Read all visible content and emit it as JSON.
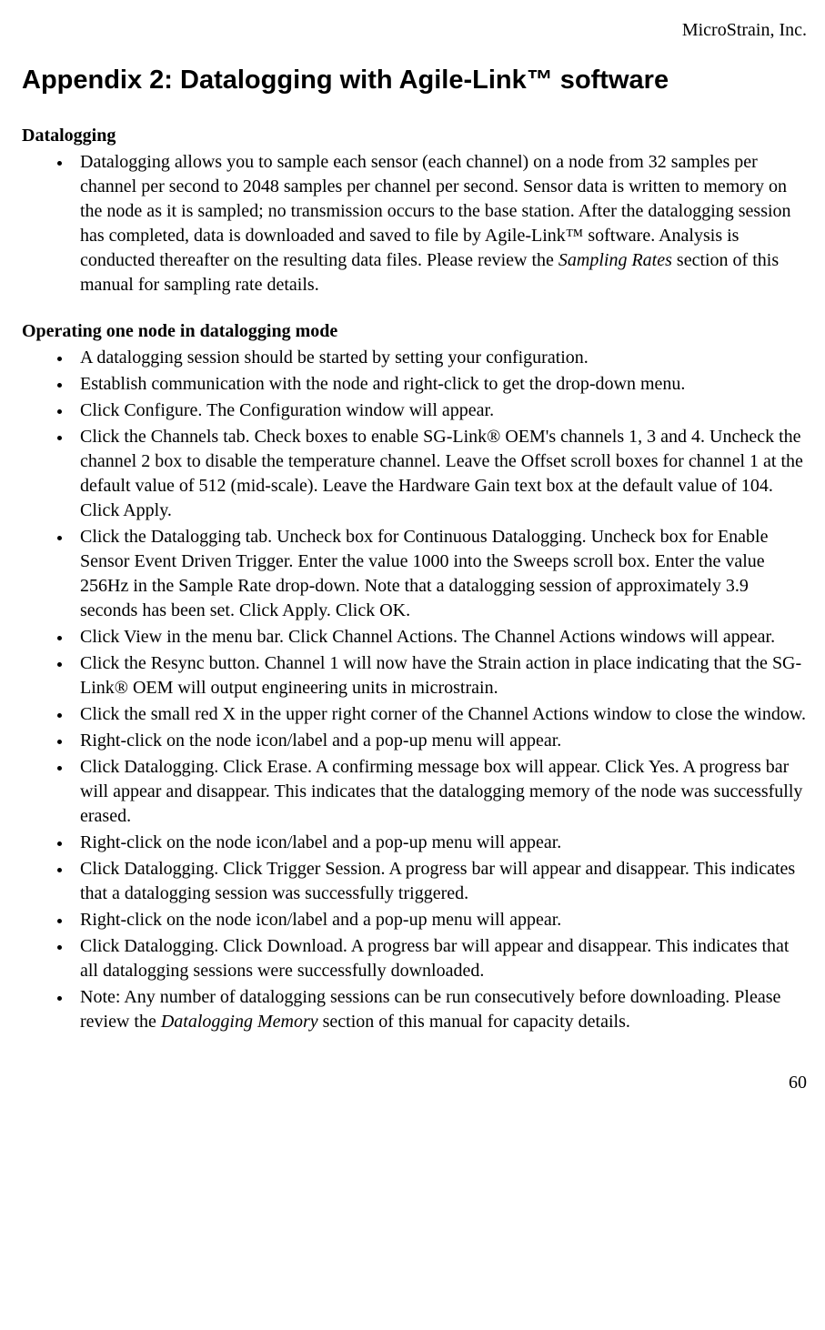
{
  "header": {
    "company": "MicroStrain, Inc."
  },
  "title": "Appendix 2: Datalogging with Agile-Link™ software",
  "section1": {
    "heading": "Datalogging",
    "items": {
      "i0_a": "Datalogging allows you to sample each sensor (each channel) on a node from 32 samples per channel per second to 2048 samples per channel per second. Sensor data is written to memory on the node as it is sampled; no transmission occurs to the base station. After the datalogging session has completed, data is downloaded and saved to file by Agile-Link™ software. Analysis is conducted thereafter on the resulting data files. Please review the ",
      "i0_em": "Sampling Rates",
      "i0_b": " section of this manual for sampling rate details."
    }
  },
  "section2": {
    "heading": "Operating one node in datalogging mode",
    "items": {
      "i0": "A datalogging session should be started by setting your configuration.",
      "i1": "Establish communication with the node and right-click to get the drop-down menu.",
      "i2": "Click Configure.  The Configuration window will appear.",
      "i3": "Click the Channels tab.  Check boxes to enable SG-Link® OEM's channels 1, 3 and 4. Uncheck the channel 2 box to disable the temperature channel.  Leave the Offset scroll boxes for channel 1 at the default value of 512 (mid-scale).  Leave the Hardware Gain text box at the default value of 104. Click Apply.",
      "i4": "Click the Datalogging tab.  Uncheck box for Continuous Datalogging.  Uncheck box for Enable Sensor Event Driven Trigger.  Enter the value 1000 into the Sweeps scroll box.  Enter the value 256Hz in the Sample Rate drop-down.  Note that a datalogging session of approximately 3.9 seconds has been set.  Click Apply.  Click OK.",
      "i5": "Click View in the menu bar.  Click Channel Actions.  The Channel Actions windows will appear.",
      "i6": "Click the Resync button.  Channel 1 will now have the Strain action in place indicating that the SG-Link® OEM will output engineering units in microstrain.",
      "i7": "Click the small red X in the upper right corner of the Channel Actions window to close the window.",
      "i8": "Right-click on the node icon/label and a pop-up menu will appear.",
      "i9": "Click Datalogging.  Click Erase.  A confirming message box will appear.  Click Yes.  A progress bar will appear and disappear.  This indicates that the datalogging memory of the node was successfully erased.",
      "i10": "Right-click on the node icon/label and a pop-up menu will appear.",
      "i11": "Click Datalogging.  Click Trigger Session.  A progress bar will appear and disappear.  This indicates that a datalogging session was successfully triggered.",
      "i12": "Right-click on the node icon/label and a pop-up menu will appear.",
      "i13": "Click Datalogging.  Click Download.  A progress bar will appear and disappear. This indicates that all datalogging sessions were successfully downloaded.",
      "i14_a": "Note: Any number of datalogging sessions can be run consecutively before downloading. Please review the ",
      "i14_em": "Datalogging Memory",
      "i14_b": " section of this manual for capacity details."
    }
  },
  "footer": {
    "page": "60"
  }
}
